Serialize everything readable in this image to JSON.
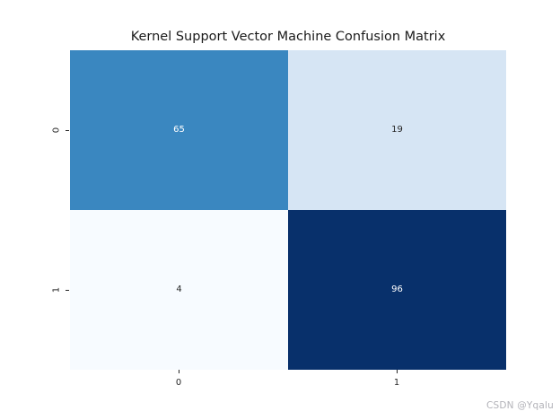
{
  "chart_data": {
    "type": "heatmap",
    "title": "Kernel Support Vector Machine Confusion Matrix",
    "colormap": "Blues",
    "x_tick_labels": [
      "0",
      "1"
    ],
    "y_tick_labels": [
      "0",
      "1"
    ],
    "rows": [
      "0",
      "1"
    ],
    "columns": [
      "0",
      "1"
    ],
    "values": [
      [
        65,
        19
      ],
      [
        4,
        96
      ]
    ],
    "value_range": [
      4,
      96
    ],
    "grid": "off",
    "legend": "none",
    "cells": [
      {
        "row": "0",
        "col": "0",
        "value": "65",
        "bg": "#3a87c0",
        "fg": "#ffffff"
      },
      {
        "row": "0",
        "col": "1",
        "value": "19",
        "bg": "#d6e5f4",
        "fg": "#262626"
      },
      {
        "row": "1",
        "col": "0",
        "value": "4",
        "bg": "#f7fbff",
        "fg": "#262626"
      },
      {
        "row": "1",
        "col": "1",
        "value": "96",
        "bg": "#08306b",
        "fg": "#ffffff"
      }
    ],
    "title_color": "#1a1a1a",
    "tick_color": "#262626"
  },
  "page": {
    "watermark": "CSDN @Yqalu",
    "watermark_color": "#b2b2b8"
  }
}
